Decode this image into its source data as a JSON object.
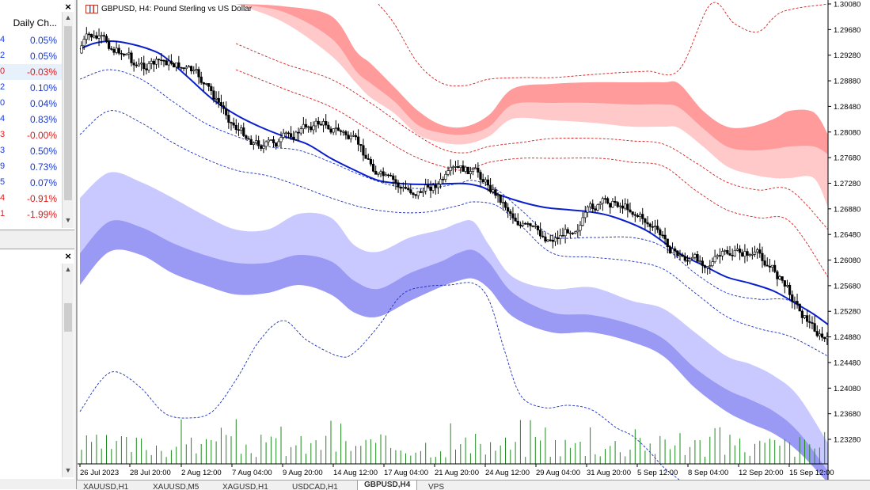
{
  "watch": {
    "column_header": "Daily Ch...",
    "rows": [
      {
        "edge": "4",
        "value": "0.05%",
        "sign": "pos"
      },
      {
        "edge": "2",
        "value": "0.05%",
        "sign": "pos"
      },
      {
        "edge": "0",
        "value": "-0.03%",
        "sign": "neg",
        "selected": true
      },
      {
        "edge": "2",
        "value": "0.10%",
        "sign": "pos"
      },
      {
        "edge": "0",
        "value": "0.04%",
        "sign": "pos"
      },
      {
        "edge": "4",
        "value": "0.83%",
        "sign": "pos"
      },
      {
        "edge": "3",
        "value": "-0.00%",
        "sign": "neg"
      },
      {
        "edge": "3",
        "value": "0.50%",
        "sign": "pos"
      },
      {
        "edge": "9",
        "value": "0.73%",
        "sign": "pos"
      },
      {
        "edge": "5",
        "value": "0.07%",
        "sign": "pos"
      },
      {
        "edge": "4",
        "value": "-0.91%",
        "sign": "neg"
      },
      {
        "edge": "1",
        "value": "-1.99%",
        "sign": "neg"
      }
    ]
  },
  "chart": {
    "title": "GBPUSD, H4:  Pound Sterling vs US Dollar",
    "price_labels": [
      "1.30080",
      "1.29680",
      "1.29280",
      "1.28880",
      "1.28480",
      "1.28080",
      "1.27680",
      "1.27280",
      "1.26880",
      "1.26480",
      "1.26080",
      "1.25680",
      "1.25280",
      "1.24880",
      "1.24480",
      "1.24080",
      "1.23680",
      "1.23280"
    ],
    "time_labels": [
      "26 Jul 2023",
      "28 Jul 20:00",
      "2 Aug 12:00",
      "7 Aug 04:00",
      "9 Aug 20:00",
      "14 Aug 12:00",
      "17 Aug 04:00",
      "21 Aug 20:00",
      "24 Aug 12:00",
      "29 Aug 04:00",
      "31 Aug 20:00",
      "5 Sep 12:00",
      "8 Sep 04:00",
      "12 Sep 20:00",
      "15 Sep 12:00"
    ]
  },
  "tabs": [
    "XAUUSD,H1",
    "XAUUSD,M5",
    "XAGUSD,H1",
    "USDCAD,H1",
    "GBPUSD,H4",
    "VPS"
  ],
  "colors": {
    "up_candle": "#ffffff",
    "down_candle": "#000000",
    "ma": "#0a1fcc",
    "upper_band_outer": "#ffc9c9",
    "upper_band_inner": "#ff9b9b",
    "lower_band_outer": "#c9c9ff",
    "lower_band_inner": "#9a9af5",
    "volume": "#1f8a1f"
  }
}
